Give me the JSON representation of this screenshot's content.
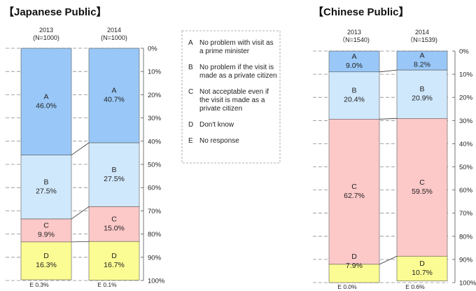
{
  "chart_data": [
    {
      "type": "bar",
      "subtype": "stacked-100-percent",
      "title": "【Japanese Public】",
      "categories": [
        "2013",
        "2014"
      ],
      "sample_sizes": [
        "(N=1000)",
        "(N=1000)"
      ],
      "series": [
        {
          "name": "A",
          "values": [
            46.0,
            40.7
          ],
          "labels": [
            "A\n46.0%",
            "A\n40.7%"
          ]
        },
        {
          "name": "B",
          "values": [
            27.5,
            27.5
          ],
          "labels": [
            "B\n27.5%",
            "B\n27.5%"
          ]
        },
        {
          "name": "C",
          "values": [
            9.9,
            15.0
          ],
          "labels": [
            "C\n9.9%",
            "C\n15.0%"
          ]
        },
        {
          "name": "D",
          "values": [
            16.3,
            16.7
          ],
          "labels": [
            "D\n16.3%",
            "D\n16.7%"
          ]
        },
        {
          "name": "E",
          "values": [
            0.3,
            0.1
          ],
          "labels": [
            "E 0.3%",
            "E 0.1%"
          ]
        }
      ],
      "yticks": [
        "0%",
        "10%",
        "20%",
        "30%",
        "40%",
        "50%",
        "60%",
        "70%",
        "80%",
        "90%",
        "100%"
      ],
      "ylim": [
        0,
        100
      ]
    },
    {
      "type": "bar",
      "subtype": "stacked-100-percent",
      "title": "【Chinese Public】",
      "categories": [
        "2013",
        "2014"
      ],
      "sample_sizes": [
        "（N=1540)",
        "（N=1539)"
      ],
      "series": [
        {
          "name": "A",
          "values": [
            9.0,
            8.2
          ],
          "labels": [
            "A\n9.0%",
            "A\n8.2%"
          ]
        },
        {
          "name": "B",
          "values": [
            20.4,
            20.9
          ],
          "labels": [
            "B\n20.4%",
            "B\n20.9%"
          ]
        },
        {
          "name": "C",
          "values": [
            62.7,
            59.5
          ],
          "labels": [
            "C\n62.7%",
            "C\n59.5%"
          ]
        },
        {
          "name": "D",
          "values": [
            7.9,
            10.7
          ],
          "labels": [
            "D\n7.9%",
            "D\n10.7%"
          ]
        },
        {
          "name": "E",
          "values": [
            0.0,
            0.6
          ],
          "labels": [
            "E 0.0%",
            "E 0.6%"
          ]
        }
      ],
      "yticks": [
        "0%",
        "10%",
        "20%",
        "30%",
        "40%",
        "50%",
        "60%",
        "70%",
        "80%",
        "90%",
        "100%"
      ],
      "ylim": [
        0,
        100
      ]
    }
  ],
  "colors": {
    "A": "#99c8f8",
    "B": "#d0e8fc",
    "C": "#fcc8c8",
    "D": "#fcfc94",
    "E": "#ffffff"
  },
  "legend": [
    {
      "key": "A",
      "lines": [
        "No problem  with visit as",
        "a prime minister"
      ]
    },
    {
      "key": "B",
      "lines": [
        "No problem  if the visit is",
        "made as a private citizen"
      ]
    },
    {
      "key": "C",
      "lines": [
        "Not acceptable even if",
        "the visit is made as a",
        "private citizen"
      ]
    },
    {
      "key": "D",
      "lines": [
        "Don't know"
      ]
    },
    {
      "key": "E",
      "lines": [
        "No response"
      ]
    }
  ]
}
